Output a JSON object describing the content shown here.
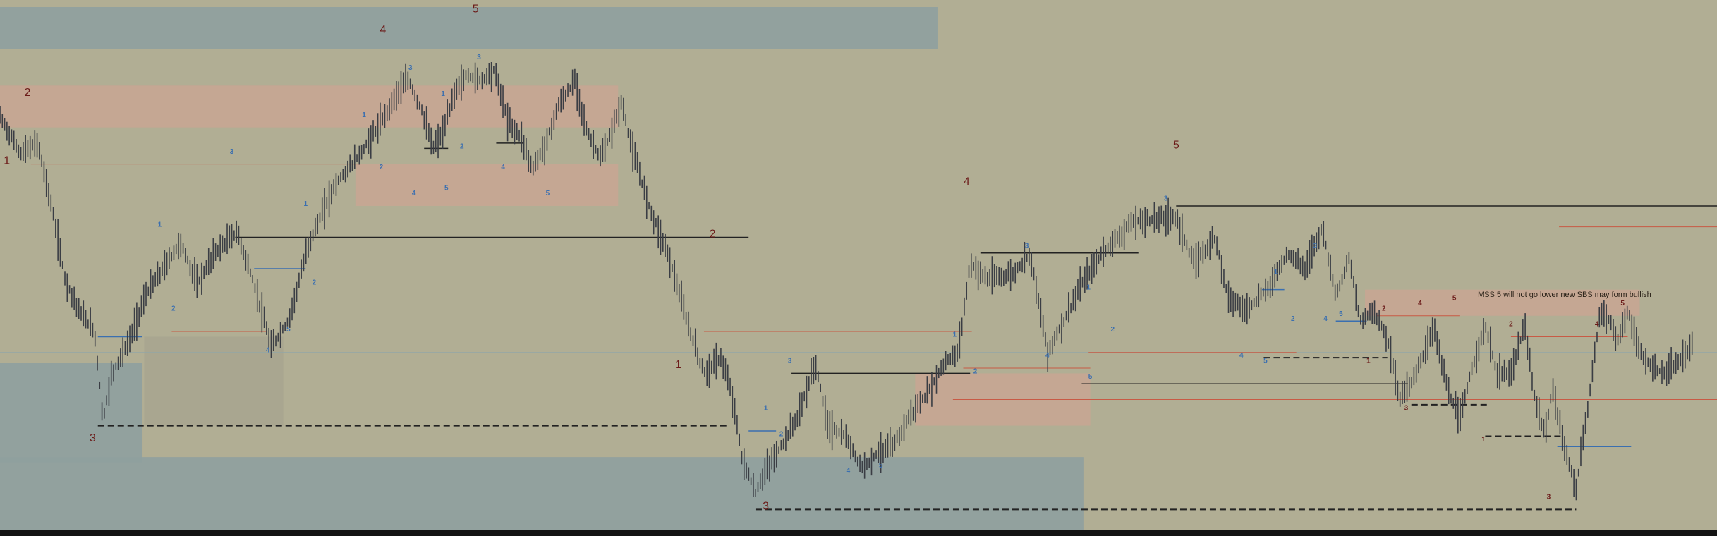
{
  "colors": {
    "background": "#b1ae94",
    "zone_blue": "#8f9f9e",
    "zone_pink": "#c9a693",
    "zone_gray": "#a9a58f",
    "candle": "#3a3d44",
    "wave_red": "#6b1a18",
    "wave_blue": "#3a6fb0",
    "line_black": "#222222",
    "line_red": "#c85a45",
    "line_blue": "#3a6fb0",
    "line_gray": "#93a6a6"
  },
  "annotation": {
    "text": "MSS 5 will not go lower new SBS may form bullish"
  },
  "chart_data": {
    "type": "candlestick",
    "title": "",
    "xlabel": "",
    "ylabel": "",
    "x_range": [
      0,
      1000
    ],
    "y_range": [
      0,
      100
    ],
    "grid": false,
    "legend": "none",
    "price_path": [
      [
        0,
        79
      ],
      [
        12,
        72
      ],
      [
        22,
        74
      ],
      [
        30,
        62
      ],
      [
        38,
        48
      ],
      [
        46,
        42
      ],
      [
        55,
        38
      ],
      [
        60,
        21
      ],
      [
        65,
        30
      ],
      [
        75,
        36
      ],
      [
        85,
        45
      ],
      [
        95,
        50
      ],
      [
        105,
        55
      ],
      [
        115,
        47
      ],
      [
        125,
        53
      ],
      [
        138,
        57
      ],
      [
        148,
        47
      ],
      [
        158,
        35
      ],
      [
        168,
        40
      ],
      [
        180,
        55
      ],
      [
        195,
        66
      ],
      [
        210,
        72
      ],
      [
        222,
        78
      ],
      [
        232,
        84
      ],
      [
        238,
        86
      ],
      [
        246,
        80
      ],
      [
        252,
        73
      ],
      [
        258,
        76
      ],
      [
        265,
        84
      ],
      [
        272,
        87
      ],
      [
        280,
        86
      ],
      [
        288,
        88
      ],
      [
        296,
        78
      ],
      [
        304,
        75
      ],
      [
        310,
        69
      ],
      [
        318,
        74
      ],
      [
        325,
        81
      ],
      [
        335,
        86
      ],
      [
        342,
        76
      ],
      [
        350,
        71
      ],
      [
        356,
        76
      ],
      [
        362,
        82
      ],
      [
        368,
        73
      ],
      [
        378,
        62
      ],
      [
        390,
        52
      ],
      [
        400,
        40
      ],
      [
        410,
        30
      ],
      [
        420,
        33
      ],
      [
        427,
        25
      ],
      [
        432,
        14
      ],
      [
        440,
        7
      ],
      [
        445,
        11
      ],
      [
        455,
        16
      ],
      [
        465,
        22
      ],
      [
        475,
        32
      ],
      [
        482,
        20
      ],
      [
        492,
        18
      ],
      [
        502,
        12
      ],
      [
        512,
        15
      ],
      [
        520,
        16
      ],
      [
        530,
        22
      ],
      [
        540,
        26
      ],
      [
        550,
        32
      ],
      [
        558,
        34
      ],
      [
        565,
        51
      ],
      [
        575,
        48
      ],
      [
        590,
        49
      ],
      [
        600,
        53
      ],
      [
        610,
        34
      ],
      [
        618,
        39
      ],
      [
        630,
        47
      ],
      [
        642,
        53
      ],
      [
        660,
        59
      ],
      [
        685,
        60
      ],
      [
        695,
        51
      ],
      [
        708,
        56
      ],
      [
        715,
        45
      ],
      [
        725,
        42
      ],
      [
        738,
        46
      ],
      [
        750,
        53
      ],
      [
        760,
        50
      ],
      [
        770,
        58
      ],
      [
        778,
        45
      ],
      [
        786,
        52
      ],
      [
        792,
        40
      ],
      [
        800,
        42
      ],
      [
        808,
        37
      ],
      [
        815,
        25
      ],
      [
        825,
        30
      ],
      [
        835,
        39
      ],
      [
        843,
        27
      ],
      [
        850,
        21
      ],
      [
        858,
        32
      ],
      [
        865,
        39
      ],
      [
        872,
        30
      ],
      [
        880,
        30
      ],
      [
        888,
        39
      ],
      [
        894,
        25
      ],
      [
        900,
        18
      ],
      [
        904,
        27
      ],
      [
        912,
        15
      ],
      [
        918,
        8
      ],
      [
        925,
        24
      ],
      [
        932,
        42
      ],
      [
        938,
        40
      ],
      [
        942,
        36
      ],
      [
        948,
        42
      ],
      [
        955,
        34
      ],
      [
        962,
        31
      ],
      [
        970,
        30
      ],
      [
        978,
        32
      ],
      [
        986,
        36
      ]
    ],
    "wave_labels_major": [
      {
        "text": "1",
        "x": 4,
        "y": 70
      },
      {
        "text": "2",
        "x": 16,
        "y": 83
      },
      {
        "text": "3",
        "x": 54,
        "y": 17
      },
      {
        "text": "4",
        "x": 223,
        "y": 95
      },
      {
        "text": "5",
        "x": 277,
        "y": 99
      },
      {
        "text": "1",
        "x": 395,
        "y": 31
      },
      {
        "text": "2",
        "x": 415,
        "y": 56
      },
      {
        "text": "3",
        "x": 446,
        "y": 4
      },
      {
        "text": "4",
        "x": 563,
        "y": 66
      },
      {
        "text": "5",
        "x": 685,
        "y": 73
      }
    ],
    "wave_labels_minor_blue": [
      {
        "text": "3",
        "x": 135,
        "y": 72
      },
      {
        "text": "1",
        "x": 93,
        "y": 58
      },
      {
        "text": "2",
        "x": 101,
        "y": 42
      },
      {
        "text": "1",
        "x": 178,
        "y": 62
      },
      {
        "text": "2",
        "x": 183,
        "y": 47
      },
      {
        "text": "4",
        "x": 156,
        "y": 34
      },
      {
        "text": "5",
        "x": 168,
        "y": 38
      },
      {
        "text": "3",
        "x": 239,
        "y": 88
      },
      {
        "text": "1",
        "x": 212,
        "y": 79
      },
      {
        "text": "2",
        "x": 222,
        "y": 69
      },
      {
        "text": "4",
        "x": 241,
        "y": 64
      },
      {
        "text": "5",
        "x": 260,
        "y": 65
      },
      {
        "text": "1",
        "x": 258,
        "y": 83
      },
      {
        "text": "2",
        "x": 269,
        "y": 73
      },
      {
        "text": "3",
        "x": 279,
        "y": 90
      },
      {
        "text": "4",
        "x": 293,
        "y": 69
      },
      {
        "text": "5",
        "x": 319,
        "y": 64
      },
      {
        "text": "3",
        "x": 460,
        "y": 32
      },
      {
        "text": "1",
        "x": 446,
        "y": 23
      },
      {
        "text": "2",
        "x": 455,
        "y": 18
      },
      {
        "text": "4",
        "x": 494,
        "y": 11
      },
      {
        "text": "5",
        "x": 513,
        "y": 12
      },
      {
        "text": "1",
        "x": 556,
        "y": 37
      },
      {
        "text": "2",
        "x": 568,
        "y": 30
      },
      {
        "text": "3",
        "x": 598,
        "y": 54
      },
      {
        "text": "1",
        "x": 634,
        "y": 46
      },
      {
        "text": "2",
        "x": 648,
        "y": 38
      },
      {
        "text": "4",
        "x": 610,
        "y": 33
      },
      {
        "text": "5",
        "x": 635,
        "y": 29
      },
      {
        "text": "3",
        "x": 679,
        "y": 63
      },
      {
        "text": "1",
        "x": 743,
        "y": 49
      },
      {
        "text": "2",
        "x": 753,
        "y": 40
      },
      {
        "text": "3",
        "x": 766,
        "y": 54
      },
      {
        "text": "4",
        "x": 723,
        "y": 33
      },
      {
        "text": "5",
        "x": 737,
        "y": 32
      },
      {
        "text": "4",
        "x": 772,
        "y": 40
      },
      {
        "text": "5",
        "x": 781,
        "y": 41
      }
    ],
    "wave_labels_minor_red": [
      {
        "text": "1",
        "x": 797,
        "y": 32
      },
      {
        "text": "2",
        "x": 806,
        "y": 42
      },
      {
        "text": "3",
        "x": 819,
        "y": 23
      },
      {
        "text": "4",
        "x": 827,
        "y": 43
      },
      {
        "text": "5",
        "x": 847,
        "y": 44
      },
      {
        "text": "1",
        "x": 864,
        "y": 17
      },
      {
        "text": "2",
        "x": 880,
        "y": 39
      },
      {
        "text": "3",
        "x": 902,
        "y": 6
      },
      {
        "text": "4",
        "x": 930,
        "y": 39
      },
      {
        "text": "5",
        "x": 945,
        "y": 43
      }
    ],
    "zones_blue": [
      {
        "x": [
          0,
          546
        ],
        "y": [
          92,
          100
        ]
      },
      {
        "x": [
          0,
          83
        ],
        "y": [
          13,
          32
        ]
      },
      {
        "x": [
          0,
          631
        ],
        "y": [
          0,
          14
        ]
      }
    ],
    "zones_pink": [
      {
        "x": [
          0,
          360
        ],
        "y": [
          77,
          85
        ]
      },
      {
        "x": [
          207,
          360
        ],
        "y": [
          62,
          70
        ]
      },
      {
        "x": [
          533,
          635
        ],
        "y": [
          20,
          30
        ]
      },
      {
        "x": [
          795,
          955
        ],
        "y": [
          41,
          46
        ]
      }
    ],
    "zones_gray": [
      {
        "x": [
          84,
          165
        ],
        "y": [
          20,
          37
        ]
      }
    ],
    "levels_black": [
      {
        "x": [
          137,
          436
        ],
        "y": 56
      },
      {
        "x": [
          571,
          663
        ],
        "y": 53
      },
      {
        "x": [
          685,
          1000
        ],
        "y": 62
      },
      {
        "x": [
          461,
          565
        ],
        "y": 30
      },
      {
        "x": [
          630,
          820
        ],
        "y": 28
      },
      {
        "x": [
          247,
          261
        ],
        "y": 73
      },
      {
        "x": [
          289,
          305
        ],
        "y": 74
      }
    ],
    "levels_black_dashed": [
      {
        "x": [
          57,
          424
        ],
        "y": 20
      },
      {
        "x": [
          440,
          918
        ],
        "y": 4
      },
      {
        "x": [
          736,
          808
        ],
        "y": 33
      },
      {
        "x": [
          822,
          868
        ],
        "y": 24
      },
      {
        "x": [
          865,
          910
        ],
        "y": 18
      }
    ],
    "levels_red": [
      {
        "x": [
          18,
          210
        ],
        "y": 70
      },
      {
        "x": [
          183,
          390
        ],
        "y": 44
      },
      {
        "x": [
          100,
          155
        ],
        "y": 38
      },
      {
        "x": [
          410,
          566
        ],
        "y": 38
      },
      {
        "x": [
          561,
          635
        ],
        "y": 31
      },
      {
        "x": [
          555,
          1000
        ],
        "y": 25
      },
      {
        "x": [
          634,
          755
        ],
        "y": 34
      },
      {
        "x": [
          802,
          850
        ],
        "y": 41
      },
      {
        "x": [
          880,
          948
        ],
        "y": 37
      },
      {
        "x": [
          908,
          1000
        ],
        "y": 58
      }
    ],
    "levels_blue": [
      {
        "x": [
          57,
          83
        ],
        "y": 37
      },
      {
        "x": [
          148,
          178
        ],
        "y": 50
      },
      {
        "x": [
          436,
          452
        ],
        "y": 19
      },
      {
        "x": [
          735,
          748
        ],
        "y": 46
      },
      {
        "x": [
          778,
          796
        ],
        "y": 40
      },
      {
        "x": [
          907,
          950
        ],
        "y": 16
      }
    ],
    "level_gray": {
      "x": [
        0,
        1000
      ],
      "y": 34
    }
  }
}
